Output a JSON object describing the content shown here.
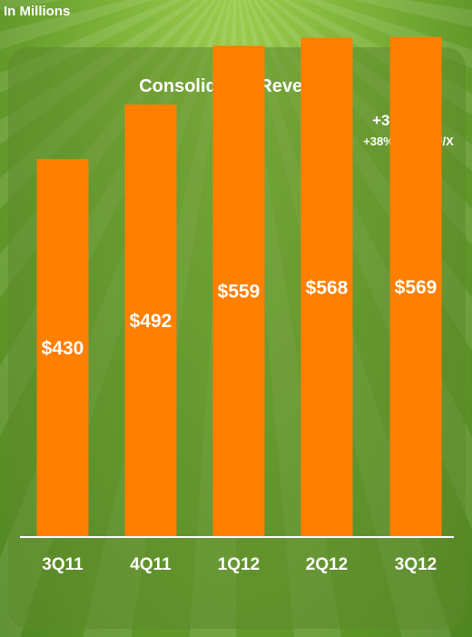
{
  "units_label": "In Millions",
  "colors": {
    "bar": "#ff7f00",
    "text": "#ffffff",
    "baseline": "#ffffff"
  },
  "chart_data": {
    "type": "bar",
    "title": "Consolidated Revenue",
    "categories": [
      "3Q11",
      "4Q11",
      "1Q12",
      "2Q12",
      "3Q12"
    ],
    "values": [
      430,
      492,
      559,
      568,
      569
    ],
    "value_labels": [
      "$430",
      "$492",
      "$559",
      "$568",
      "$569"
    ],
    "annotations": [
      "+32% Y/Y",
      "+38% Y/Y ex F/X"
    ],
    "ylim": [
      0,
      611
    ],
    "grid": false,
    "legend": "none"
  }
}
